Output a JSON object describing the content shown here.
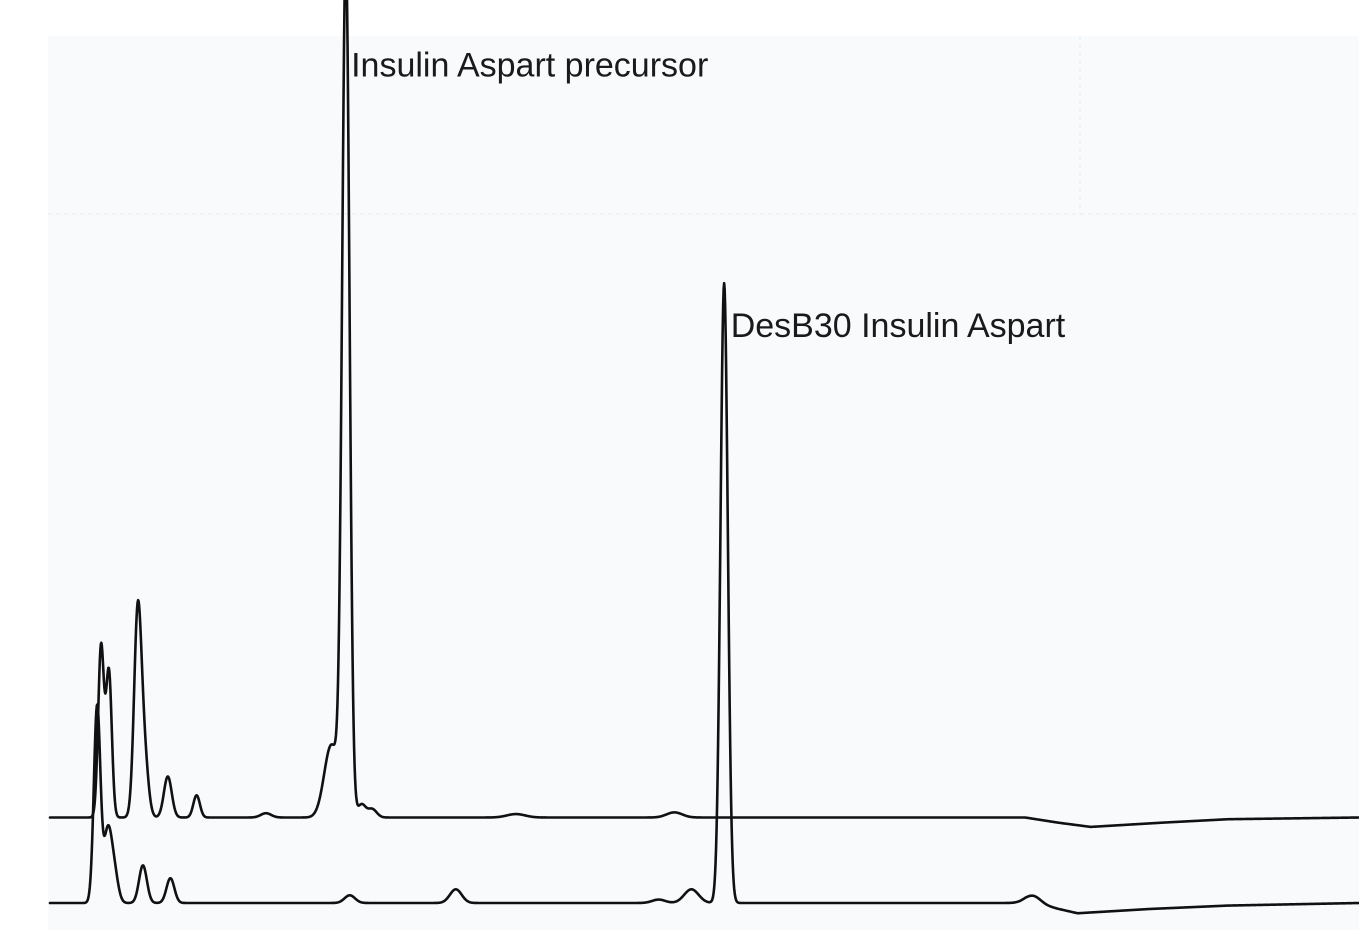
{
  "chart_data": {
    "type": "line",
    "title": "",
    "xlabel": "",
    "ylabel": "",
    "xlim": [
      0,
      100
    ],
    "ylim": [
      0,
      100
    ],
    "grid": false,
    "legend": "none",
    "annotations": [
      {
        "text": "Insulin Aspart precursor",
        "x": 23.0,
        "y": 99.5
      },
      {
        "text": "DesB30 Insulin Aspart",
        "x": 52.0,
        "y": 69.0
      }
    ],
    "series": [
      {
        "offset": 10.0,
        "baseline_points": [
          [
            0,
            0
          ],
          [
            74.5,
            0
          ],
          [
            77.0,
            -0.6
          ],
          [
            79.5,
            -1.1
          ],
          [
            85.0,
            -0.6
          ],
          [
            90.0,
            -0.2
          ],
          [
            100,
            0
          ]
        ],
        "peaks": [
          {
            "x": 3.9,
            "height": 20.0,
            "width": 0.22
          },
          {
            "x": 4.5,
            "height": 17.0,
            "width": 0.22
          },
          {
            "x": 6.7,
            "height": 23.5,
            "width": 0.28
          },
          {
            "x": 7.2,
            "height": 7.0,
            "width": 0.3
          },
          {
            "x": 9.0,
            "height": 4.8,
            "width": 0.3
          },
          {
            "x": 11.2,
            "height": 2.6,
            "width": 0.25
          },
          {
            "x": 16.5,
            "height": 0.5,
            "width": 0.4
          },
          {
            "x": 21.5,
            "height": 8.5,
            "width": 0.55
          },
          {
            "x": 22.6,
            "height": 100.0,
            "width": 0.28
          },
          {
            "x": 23.8,
            "height": 1.5,
            "width": 0.3
          },
          {
            "x": 24.6,
            "height": 1.0,
            "width": 0.35
          },
          {
            "x": 35.6,
            "height": 0.4,
            "width": 0.7
          },
          {
            "x": 47.7,
            "height": 0.6,
            "width": 0.6
          }
        ]
      },
      {
        "offset": 0.0,
        "baseline_points": [
          [
            0,
            0
          ],
          [
            74.5,
            0
          ],
          [
            76.5,
            -0.5
          ],
          [
            78.5,
            -1.2
          ],
          [
            84.0,
            -0.7
          ],
          [
            90.0,
            -0.3
          ],
          [
            100,
            0
          ]
        ],
        "peaks": [
          {
            "x": 3.6,
            "height": 23.0,
            "width": 0.25
          },
          {
            "x": 4.4,
            "height": 8.0,
            "width": 0.3
          },
          {
            "x": 4.9,
            "height": 3.5,
            "width": 0.3
          },
          {
            "x": 7.1,
            "height": 4.4,
            "width": 0.3
          },
          {
            "x": 9.2,
            "height": 2.9,
            "width": 0.3
          },
          {
            "x": 22.9,
            "height": 0.9,
            "width": 0.4
          },
          {
            "x": 31.0,
            "height": 1.6,
            "width": 0.45
          },
          {
            "x": 46.5,
            "height": 0.4,
            "width": 0.5
          },
          {
            "x": 49.0,
            "height": 1.6,
            "width": 0.55
          },
          {
            "x": 51.5,
            "height": 72.5,
            "width": 0.28
          },
          {
            "x": 75.1,
            "height": 1.0,
            "width": 0.6
          }
        ]
      }
    ]
  }
}
